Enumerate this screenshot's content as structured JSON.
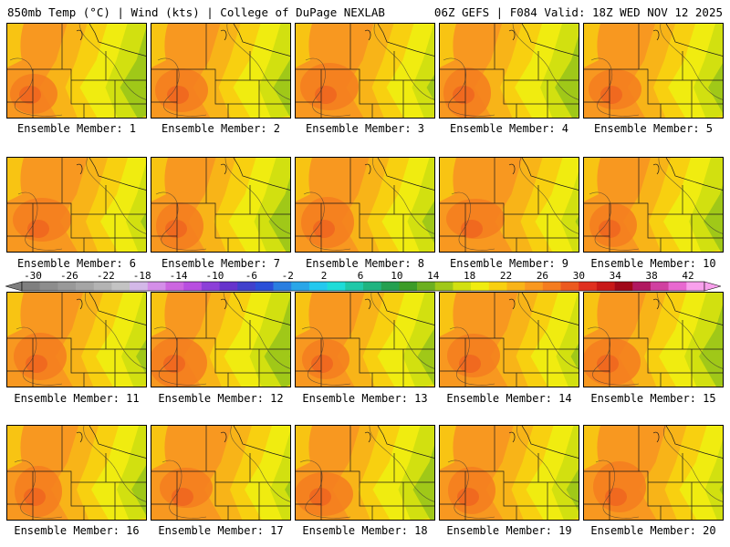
{
  "header": {
    "left_title": "850mb Temp (°C) | Wind (kts) | College of DuPage NEXLAB",
    "right_title": "06Z GEFS | F084 Valid: 18Z WED NOV 12 2025"
  },
  "members": [
    {
      "label": "Ensemble Member: 1"
    },
    {
      "label": "Ensemble Member: 2"
    },
    {
      "label": "Ensemble Member: 3"
    },
    {
      "label": "Ensemble Member: 4"
    },
    {
      "label": "Ensemble Member: 5"
    },
    {
      "label": "Ensemble Member: 6"
    },
    {
      "label": "Ensemble Member: 7"
    },
    {
      "label": "Ensemble Member: 8"
    },
    {
      "label": "Ensemble Member: 9"
    },
    {
      "label": "Ensemble Member: 10"
    },
    {
      "label": "Ensemble Member: 11"
    },
    {
      "label": "Ensemble Member: 12"
    },
    {
      "label": "Ensemble Member: 13"
    },
    {
      "label": "Ensemble Member: 14"
    },
    {
      "label": "Ensemble Member: 15"
    },
    {
      "label": "Ensemble Member: 16"
    },
    {
      "label": "Ensemble Member: 17"
    },
    {
      "label": "Ensemble Member: 18"
    },
    {
      "label": "Ensemble Member: 19"
    },
    {
      "label": "Ensemble Member: 20"
    }
  ],
  "colorbar": {
    "min": -30,
    "max": 42,
    "step": 2,
    "tick_labels": [
      "-30",
      "-26",
      "-22",
      "-18",
      "-14",
      "-10",
      "-6",
      "-2",
      "2",
      "6",
      "10",
      "14",
      "18",
      "22",
      "26",
      "30",
      "34",
      "38",
      "42"
    ],
    "colors": [
      "#7f7f7f",
      "#8d8d8d",
      "#999999",
      "#a5a5a5",
      "#b3b3b3",
      "#c3c3c3",
      "#d3b8e8",
      "#d48ee8",
      "#cc66e0",
      "#b84ee0",
      "#8c3fd8",
      "#6633cc",
      "#4040cc",
      "#2a4fd8",
      "#2a7ee0",
      "#2aa6e8",
      "#24c8ee",
      "#1edcd8",
      "#20c8a8",
      "#20b480",
      "#24a050",
      "#3c9c28",
      "#6cb020",
      "#a0c818",
      "#d2e010",
      "#f0ec10",
      "#f8d010",
      "#f8b418",
      "#f89820",
      "#f47c20",
      "#ec5a20",
      "#e03020",
      "#c81818",
      "#a00818",
      "#b01860",
      "#d040a0",
      "#e868d0",
      "#f8a0ec"
    ]
  }
}
